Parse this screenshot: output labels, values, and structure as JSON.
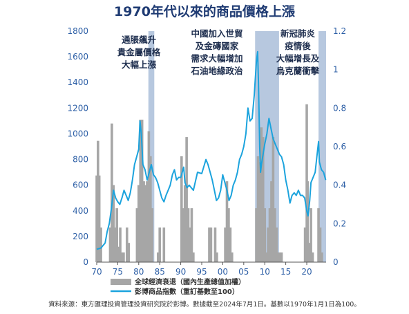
{
  "chart_data": {
    "type": "bar+line",
    "title": "1970年代以來的商品價格上漲",
    "x_tick_labels": [
      "70",
      "75",
      "80",
      "85",
      "90",
      "95",
      "00",
      "05",
      "10",
      "15",
      "20"
    ],
    "x_tick_years": [
      1970,
      1975,
      1980,
      1985,
      1990,
      1995,
      2000,
      2005,
      2010,
      2015,
      2020
    ],
    "xlim": [
      1970,
      2024.6
    ],
    "left_axis": {
      "ticks": [
        0,
        200,
        400,
        600,
        800,
        1000,
        1200,
        1400,
        1600,
        1800
      ],
      "lim": [
        0,
        1800
      ]
    },
    "right_axis": {
      "ticks": [
        "0",
        "0.2",
        "0.4",
        "0.6",
        "0.8",
        "1",
        "1.2"
      ],
      "lim": [
        0,
        1.2
      ]
    },
    "shaded_periods": [
      {
        "start": 1982.3,
        "end": 1983.7
      },
      {
        "start": 2007.7,
        "end": 2013.4
      },
      {
        "start": 2022.8,
        "end": 2024.6
      }
    ],
    "annotations": [
      {
        "lines": [
          "通脹飆升",
          "貴金屬價格",
          "大幅上漲"
        ]
      },
      {
        "lines": [
          "中國加入世貿",
          "及金磚國家",
          "需求大幅增加",
          "石油地緣政治"
        ]
      },
      {
        "lines": [
          "新冠肺炎",
          "疫情後",
          "大幅增長及",
          "烏克蘭衝擊"
        ]
      }
    ],
    "series": [
      {
        "name": "彭博商品指數（重訂基數至100）",
        "type": "line",
        "axis": "left",
        "color": "#1ba3dd",
        "x": [
          1970.0,
          1971.0,
          1972.0,
          1972.5,
          1973.0,
          1973.5,
          1974.0,
          1974.5,
          1975.0,
          1975.5,
          1976.0,
          1976.5,
          1977.0,
          1977.5,
          1978.0,
          1978.5,
          1979.0,
          1979.5,
          1980.0,
          1980.3,
          1980.6,
          1981.0,
          1981.5,
          1982.0,
          1982.5,
          1983.0,
          1983.5,
          1984.0,
          1984.5,
          1985.0,
          1985.5,
          1986.0,
          1986.5,
          1987.0,
          1987.5,
          1988.0,
          1988.5,
          1989.0,
          1989.5,
          1990.0,
          1990.7,
          1991.0,
          1991.5,
          1992.0,
          1993.0,
          1994.0,
          1995.0,
          1996.0,
          1996.5,
          1997.0,
          1997.5,
          1998.0,
          1998.5,
          1999.0,
          1999.5,
          2000.0,
          2000.5,
          2001.0,
          2001.5,
          2002.0,
          2002.5,
          2003.0,
          2003.5,
          2004.0,
          2004.5,
          2005.0,
          2005.5,
          2006.0,
          2006.5,
          2007.0,
          2007.5,
          2008.0,
          2008.3,
          2008.5,
          2008.8,
          2009.0,
          2009.2,
          2009.5,
          2010.0,
          2010.5,
          2011.0,
          2011.5,
          2012.0,
          2012.5,
          2013.0,
          2013.5,
          2014.0,
          2014.5,
          2015.0,
          2015.5,
          2016.0,
          2016.5,
          2017.0,
          2017.5,
          2018.0,
          2018.5,
          2019.0,
          2019.5,
          2020.0,
          2020.3,
          2020.7,
          2021.0,
          2021.5,
          2022.0,
          2022.4,
          2022.8,
          2023.0,
          2023.5,
          2024.0,
          2024.5
        ],
        "values": [
          100,
          110,
          150,
          240,
          300,
          420,
          560,
          500,
          470,
          450,
          500,
          560,
          520,
          480,
          540,
          640,
          760,
          820,
          880,
          1100,
          1000,
          760,
          720,
          640,
          700,
          760,
          680,
          660,
          620,
          560,
          500,
          470,
          520,
          560,
          600,
          680,
          720,
          640,
          660,
          660,
          740,
          620,
          580,
          600,
          560,
          700,
          690,
          800,
          760,
          700,
          640,
          560,
          480,
          500,
          560,
          680,
          620,
          560,
          480,
          520,
          600,
          640,
          700,
          800,
          840,
          900,
          1000,
          1200,
          1100,
          1120,
          1300,
          1560,
          1640,
          1400,
          900,
          700,
          760,
          820,
          920,
          1000,
          1120,
          1040,
          960,
          920,
          880,
          840,
          820,
          760,
          640,
          560,
          460,
          520,
          540,
          520,
          560,
          520,
          520,
          500,
          400,
          360,
          480,
          620,
          660,
          700,
          820,
          940,
          780,
          720,
          700,
          640
        ]
      },
      {
        "name": "全球經濟衰退（國內生產總值加權）",
        "type": "bar",
        "axis": "right",
        "color": "#a6a6a6",
        "x": [
          1970.0,
          1970.3,
          1970.6,
          1971.0,
          1973.2,
          1973.6,
          1974.0,
          1974.4,
          1974.8,
          1975.2,
          1975.6,
          1976.0,
          1976.4,
          1977.2,
          1977.6,
          1979.6,
          1980.0,
          1980.4,
          1980.8,
          1981.2,
          1981.6,
          1982.0,
          1982.4,
          1982.8,
          1983.2,
          1984.6,
          1985.0,
          1986.0,
          1990.2,
          1990.6,
          1991.0,
          1991.4,
          1991.8,
          1992.2,
          1992.6,
          1993.0,
          1996.8,
          1997.2,
          1998.2,
          1998.6,
          2000.6,
          2001.0,
          2001.4,
          2001.8,
          2002.2,
          2008.0,
          2008.4,
          2008.8,
          2009.2,
          2009.6,
          2010.0,
          2010.4,
          2010.8,
          2011.2,
          2011.6,
          2012.0,
          2012.4,
          2012.8,
          2013.2,
          2013.6,
          2014.0,
          2019.6,
          2020.0,
          2020.2,
          2020.6,
          2021.0,
          2021.4,
          2022.8,
          2023.2,
          2023.6
        ],
        "values": [
          0.45,
          0.63,
          0.45,
          0.18,
          0.18,
          0.72,
          0.4,
          0.18,
          0.28,
          0.08,
          0.18,
          0.05,
          0.05,
          0.18,
          0.1,
          0.28,
          0.4,
          0.74,
          0.74,
          0.42,
          0.4,
          0.42,
          0.68,
          0.55,
          0.28,
          0.05,
          0.18,
          0.18,
          0.55,
          0.28,
          0.4,
          0.65,
          0.28,
          0.18,
          0.28,
          0.05,
          0.18,
          0.18,
          0.18,
          0.05,
          0.18,
          0.42,
          0.28,
          0.18,
          0.05,
          0.28,
          0.55,
          0.52,
          0.7,
          0.65,
          0.28,
          0.05,
          0.18,
          0.28,
          0.42,
          0.65,
          0.28,
          0.18,
          0.05,
          0.05,
          0.05,
          0.18,
          0.82,
          0.42,
          0.1,
          0.28,
          0.05,
          0.28,
          0.18,
          0.05
        ]
      }
    ],
    "legend": [
      {
        "label": "全球經濟衰退（國內生產總值加權）",
        "kind": "bar",
        "color": "#a6a6a6"
      },
      {
        "label": "彭博商品指數（重訂基數至100）",
        "kind": "line",
        "color": "#1ba3dd"
      }
    ]
  },
  "footer": {
    "source": "資料來源：東方匯理投資管理投資研究院於彭博。數據截至2024年7月1日。基數以1970年1月1日為100。"
  }
}
